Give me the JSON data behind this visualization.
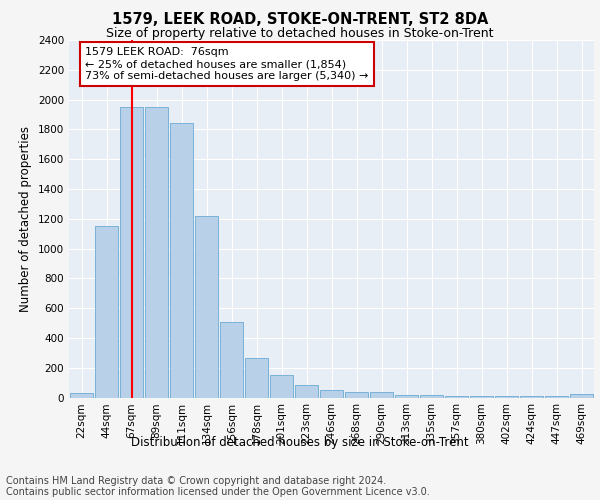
{
  "title": "1579, LEEK ROAD, STOKE-ON-TRENT, ST2 8DA",
  "subtitle": "Size of property relative to detached houses in Stoke-on-Trent",
  "xlabel": "Distribution of detached houses by size in Stoke-on-Trent",
  "ylabel": "Number of detached properties",
  "categories": [
    "22sqm",
    "44sqm",
    "67sqm",
    "89sqm",
    "111sqm",
    "134sqm",
    "156sqm",
    "178sqm",
    "201sqm",
    "223sqm",
    "246sqm",
    "268sqm",
    "290sqm",
    "313sqm",
    "335sqm",
    "357sqm",
    "380sqm",
    "402sqm",
    "424sqm",
    "447sqm",
    "469sqm"
  ],
  "values": [
    30,
    1150,
    1950,
    1950,
    1840,
    1220,
    505,
    265,
    150,
    85,
    50,
    40,
    38,
    20,
    15,
    12,
    10,
    8,
    8,
    8,
    22
  ],
  "bar_color": "#b8d0e8",
  "bar_edge_color": "#6aaad4",
  "red_line_index": 2,
  "ylim": [
    0,
    2400
  ],
  "yticks": [
    0,
    200,
    400,
    600,
    800,
    1000,
    1200,
    1400,
    1600,
    1800,
    2000,
    2200,
    2400
  ],
  "annotation_title": "1579 LEEK ROAD:  76sqm",
  "annotation_line1": "← 25% of detached houses are smaller (1,854)",
  "annotation_line2": "73% of semi-detached houses are larger (5,340) →",
  "annotation_box_edge_color": "#cc0000",
  "footer_line1": "Contains HM Land Registry data © Crown copyright and database right 2024.",
  "footer_line2": "Contains public sector information licensed under the Open Government Licence v3.0.",
  "fig_bg_color": "#f5f5f5",
  "plot_bg_color": "#e8eef5",
  "title_fontsize": 10.5,
  "subtitle_fontsize": 9,
  "tick_fontsize": 7.5,
  "ylabel_fontsize": 8.5,
  "xlabel_fontsize": 8.5,
  "footer_fontsize": 7,
  "annotation_fontsize": 8
}
